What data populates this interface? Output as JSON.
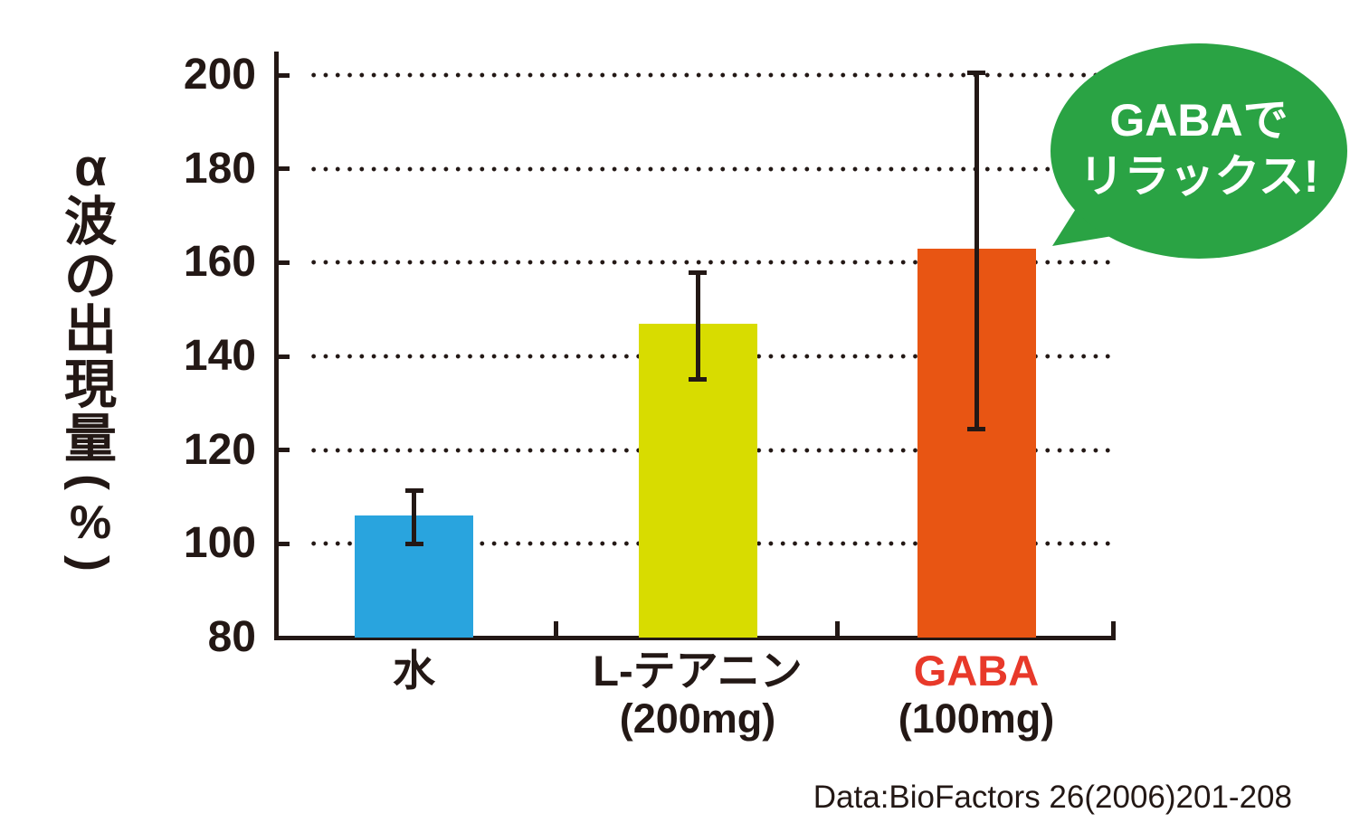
{
  "colors": {
    "ink": "#231815",
    "bar_water": "#29a4de",
    "bar_theanine": "#d8dc00",
    "bar_gaba": "#e85513",
    "gaba_label_red": "#e8392a",
    "bubble_green": "#2aa344",
    "bubble_text": "#ffffff"
  },
  "y_axis": {
    "label_main": "α波の出現量",
    "label_paren_open": "(",
    "label_percent": "%",
    "label_paren_close": ")"
  },
  "chart_data": {
    "type": "bar",
    "title": "",
    "xlabel": "",
    "ylabel": "α波の出現量(%)",
    "ymin": 80,
    "ymax": 200,
    "yticks": [
      80,
      100,
      120,
      140,
      160,
      180,
      200
    ],
    "grid": "dotted-horizontal",
    "legend": "none",
    "categories": [
      {
        "label": "水",
        "sublabel": "",
        "value": 106,
        "error_low": 100,
        "error_high": 111.5,
        "color": "#29a4de",
        "label_color": "#231815"
      },
      {
        "label": "L-テアニン",
        "sublabel": "(200mg)",
        "value": 147,
        "error_low": 135,
        "error_high": 158,
        "color": "#d8dc00",
        "label_color": "#231815"
      },
      {
        "label": "GABA",
        "sublabel": "(100mg)",
        "value": 163,
        "error_low": 124.5,
        "error_high": 200.5,
        "color": "#e85513",
        "label_color": "#e8392a"
      }
    ],
    "annotation": {
      "line1": "GABAで",
      "line2": "リラックス!",
      "bubble_color": "#2aa344",
      "text_color": "#ffffff"
    },
    "source": "Data:BioFactors 26(2006)201-208"
  }
}
